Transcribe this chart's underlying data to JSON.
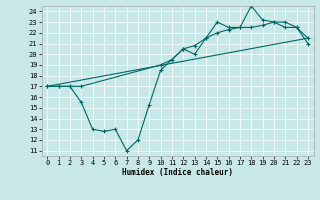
{
  "title": "",
  "xlabel": "Humidex (Indice chaleur)",
  "ylabel": "",
  "background_color": "#c8e8e8",
  "line_color": "#006666",
  "grid_color": "#ffffff",
  "xlim": [
    -0.5,
    23.5
  ],
  "ylim": [
    10.5,
    24.5
  ],
  "xticks": [
    0,
    1,
    2,
    3,
    4,
    5,
    6,
    7,
    8,
    9,
    10,
    11,
    12,
    13,
    14,
    15,
    16,
    17,
    18,
    19,
    20,
    21,
    22,
    23
  ],
  "yticks": [
    11,
    12,
    13,
    14,
    15,
    16,
    17,
    18,
    19,
    20,
    21,
    22,
    23,
    24
  ],
  "line1_x": [
    0,
    1,
    2,
    3,
    4,
    5,
    6,
    7,
    8,
    9,
    10,
    11,
    12,
    13,
    14,
    15,
    16,
    17,
    18,
    19,
    20,
    21,
    22,
    23
  ],
  "line1_y": [
    17.0,
    17.0,
    17.0,
    15.5,
    13.0,
    12.8,
    13.0,
    11.0,
    12.0,
    15.3,
    18.5,
    19.5,
    20.5,
    20.0,
    21.5,
    23.0,
    22.5,
    22.5,
    24.5,
    23.2,
    23.0,
    22.5,
    22.5,
    21.0
  ],
  "line2_x": [
    0,
    1,
    2,
    3,
    10,
    11,
    12,
    13,
    14,
    15,
    16,
    17,
    18,
    19,
    20,
    21,
    22,
    23
  ],
  "line2_y": [
    17.0,
    17.0,
    17.0,
    17.0,
    19.0,
    19.5,
    20.5,
    20.8,
    21.5,
    22.0,
    22.3,
    22.5,
    22.5,
    22.7,
    23.0,
    23.0,
    22.5,
    21.5
  ],
  "line3_x": [
    0,
    23
  ],
  "line3_y": [
    17.0,
    21.5
  ],
  "xlabel_fontsize": 5.5,
  "tick_fontsize": 5,
  "linewidth": 0.8,
  "markersize": 3,
  "markeredgewidth": 0.8
}
